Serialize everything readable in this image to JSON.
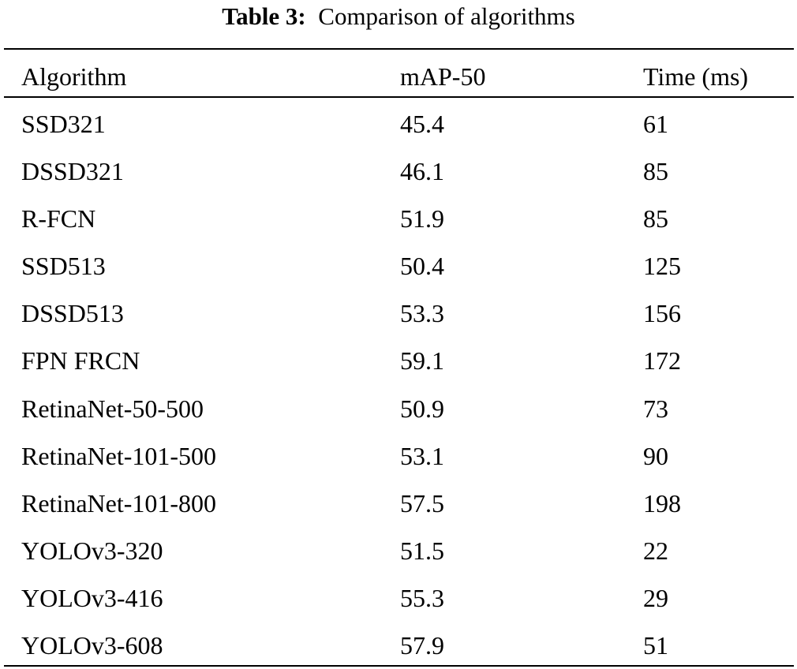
{
  "caption": {
    "label": "Table 3:",
    "text": "Comparison of algorithms"
  },
  "table": {
    "headers": [
      "Algorithm",
      "mAP-50",
      "Time (ms)"
    ],
    "rows": [
      [
        "SSD321",
        "45.4",
        "61"
      ],
      [
        "DSSD321",
        "46.1",
        "85"
      ],
      [
        "R-FCN",
        "51.9",
        "85"
      ],
      [
        "SSD513",
        "50.4",
        "125"
      ],
      [
        "DSSD513",
        "53.3",
        "156"
      ],
      [
        "FPN FRCN",
        "59.1",
        "172"
      ],
      [
        "RetinaNet-50-500",
        "50.9",
        "73"
      ],
      [
        "RetinaNet-101-500",
        "53.1",
        "90"
      ],
      [
        "RetinaNet-101-800",
        "57.5",
        "198"
      ],
      [
        "YOLOv3-320",
        "51.5",
        "22"
      ],
      [
        "YOLOv3-416",
        "55.3",
        "29"
      ],
      [
        "YOLOv3-608",
        "57.9",
        "51"
      ]
    ]
  }
}
